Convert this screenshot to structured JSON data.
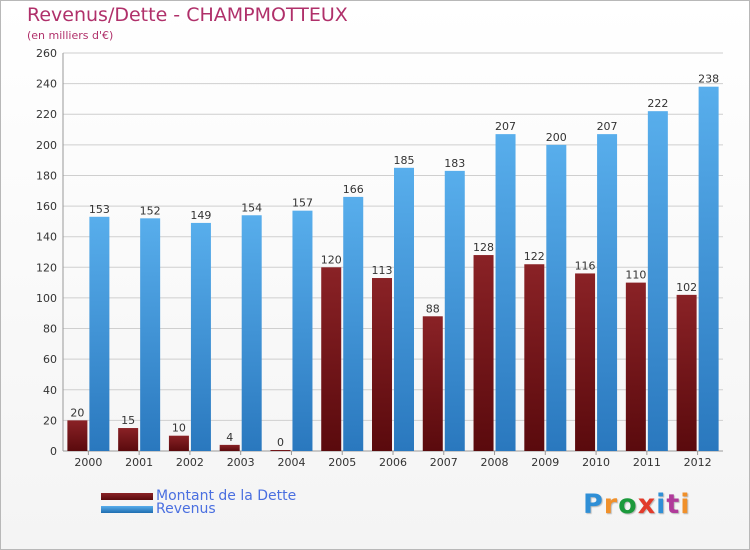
{
  "header": {
    "title": "Revenus/Dette - CHAMPMOTTEUX",
    "subtitle": "(en milliers d'€)"
  },
  "legend": {
    "items": [
      {
        "label": "Montant de la Dette",
        "color": "#6b0e12"
      },
      {
        "label": "Revenus",
        "color": "#3f9be3"
      }
    ]
  },
  "logo": {
    "text": "Proxiti",
    "colors": [
      "#2f8fd6",
      "#f0902a",
      "#1c9a3c",
      "#e23b2b",
      "#2f8fd6",
      "#b03b9a",
      "#f0902a"
    ]
  },
  "colors": {
    "debt": "#7a1519",
    "debt_dark": "#5a0a0d",
    "revenue": "#4fa7e8",
    "revenue_dark": "#1f6db0",
    "grid": "#cfcfcf",
    "title": "#b0306a"
  },
  "chart_data": {
    "type": "bar",
    "title": "Revenus/Dette - CHAMPMOTTEUX",
    "subtitle": "(en milliers d'€)",
    "categories": [
      "2000",
      "2001",
      "2002",
      "2003",
      "2004",
      "2005",
      "2006",
      "2007",
      "2008",
      "2009",
      "2010",
      "2011",
      "2012"
    ],
    "series": [
      {
        "name": "Montant de la Dette",
        "values": [
          20,
          15,
          10,
          4,
          0,
          120,
          113,
          88,
          128,
          122,
          116,
          110,
          102
        ]
      },
      {
        "name": "Revenus",
        "values": [
          153,
          152,
          149,
          154,
          157,
          166,
          185,
          183,
          207,
          200,
          207,
          222,
          238
        ]
      }
    ],
    "ylim": [
      0,
      260
    ],
    "yticks": [
      0,
      20,
      40,
      60,
      80,
      100,
      120,
      140,
      160,
      180,
      200,
      220,
      240,
      260
    ],
    "grid": true,
    "legend_position": "bottom-left"
  }
}
